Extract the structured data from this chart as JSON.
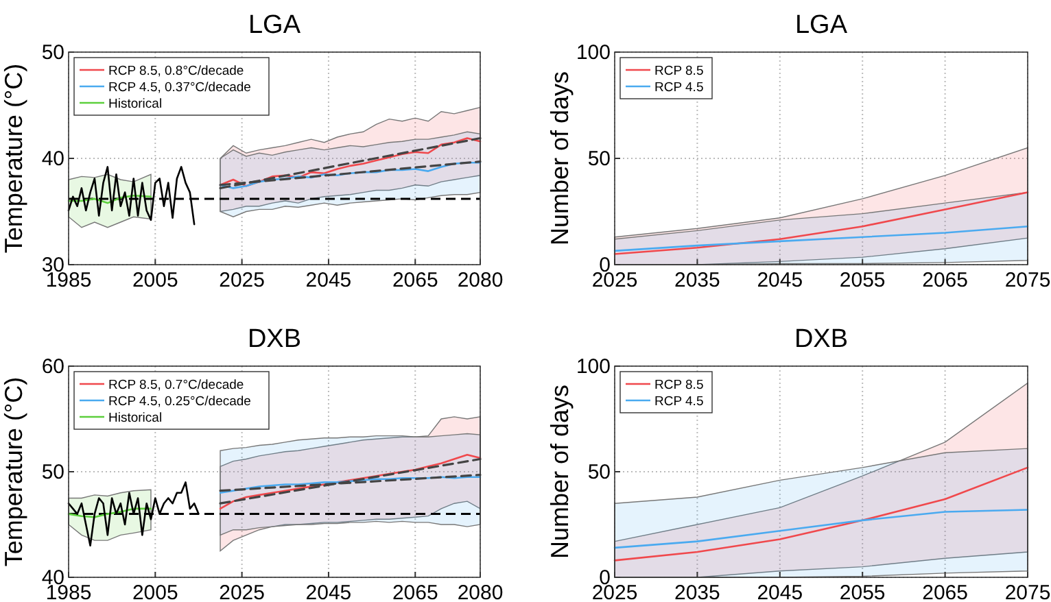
{
  "chart_data": [
    {
      "type": "line",
      "title": "LGA",
      "ylabel": "Temperature (°C)",
      "xlim": [
        1985,
        2080
      ],
      "xticks": [
        1985,
        2005,
        2025,
        2045,
        2065,
        2080
      ],
      "ylim": [
        30,
        50
      ],
      "yticks": [
        30,
        40,
        50
      ],
      "grid": true,
      "legend": "top left",
      "ref_lines": [
        {
          "axis": "y",
          "value": 36.2,
          "color": "#000000",
          "line_style": "dashed"
        }
      ],
      "series": [
        {
          "name": "RCP 8.5, 0.8°C/decade",
          "color": "#f0484c",
          "x": [
            2020,
            2023,
            2026,
            2029,
            2032,
            2035,
            2038,
            2041,
            2044,
            2047,
            2050,
            2053,
            2056,
            2059,
            2062,
            2065,
            2068,
            2071,
            2074,
            2077,
            2080
          ],
          "values": [
            37.5,
            38.0,
            37.4,
            37.8,
            38.3,
            38.4,
            38.2,
            38.7,
            38.6,
            39.0,
            39.3,
            39.5,
            39.8,
            40.1,
            40.4,
            40.6,
            40.5,
            41.3,
            41.5,
            41.9,
            41.6
          ],
          "upper": [
            40,
            41.2,
            40.5,
            40.8,
            41,
            41.2,
            41.5,
            41.8,
            41.5,
            42,
            42.3,
            42.5,
            43.2,
            43.7,
            43.5,
            43.8,
            43.5,
            44.4,
            44.2,
            44.5,
            44.8
          ],
          "lower": [
            35,
            35.2,
            35.5,
            35.5,
            35.8,
            36,
            35.8,
            36.2,
            36.4,
            36.5,
            36.6,
            36.8,
            37,
            37,
            37.2,
            37.5,
            37.4,
            37.8,
            38,
            38.2,
            38.4
          ]
        },
        {
          "name": "RCP 4.5, 0.37°C/decade",
          "color": "#4aaaf0",
          "x": [
            2020,
            2023,
            2026,
            2029,
            2032,
            2035,
            2038,
            2041,
            2044,
            2047,
            2050,
            2053,
            2056,
            2059,
            2062,
            2065,
            2068,
            2071,
            2074,
            2077,
            2080
          ],
          "values": [
            37.5,
            37.2,
            37.4,
            37.8,
            38,
            38.1,
            38.3,
            38.2,
            38.5,
            38.4,
            38.6,
            38.7,
            38.7,
            38.9,
            38.9,
            39,
            38.8,
            39.2,
            39.5,
            39.6,
            39.6
          ],
          "upper": [
            40,
            40.8,
            40.2,
            40.5,
            40.3,
            40.6,
            40.8,
            41,
            40.8,
            41,
            41.2,
            41.1,
            41.3,
            41.5,
            41.6,
            41.8,
            41.8,
            42,
            42.2,
            42.5,
            42.3
          ],
          "lower": [
            35,
            34.5,
            35,
            35.2,
            35.2,
            35.5,
            35.4,
            35.6,
            35.8,
            35.6,
            35.8,
            35.9,
            36,
            36.1,
            36.2,
            36.1,
            36.3,
            36.5,
            36.6,
            36.6,
            36.8
          ]
        },
        {
          "name": "Historical",
          "color": "#5ccf3c",
          "x": [
            1985,
            1988,
            1991,
            1994,
            1997,
            2000,
            2004
          ],
          "values": [
            36,
            36,
            36.2,
            35.8,
            36.3,
            36.5,
            36.4
          ],
          "lower": [
            34.5,
            33.5,
            34,
            33.5,
            34,
            34.5,
            34.3
          ],
          "upper": [
            38,
            38.3,
            38.2,
            38.5,
            38,
            37.8,
            38.5
          ]
        },
        {
          "color": "#000000",
          "x": [
            1985,
            1986,
            1987,
            1988,
            1989,
            1990,
            1991,
            1992,
            1993,
            1994,
            1995,
            1996,
            1997,
            1998,
            1999,
            2000,
            2001,
            2002,
            2003,
            2004,
            2005,
            2006,
            2007,
            2008,
            2009,
            2010,
            2011,
            2012,
            2013,
            2014
          ],
          "values": [
            35.1,
            36.4,
            35.5,
            37.2,
            35.1,
            36.8,
            38.1,
            34.6,
            37.7,
            39.2,
            35.1,
            38.5,
            35.5,
            36.8,
            34.6,
            38.1,
            34.6,
            37.7,
            35.1,
            34.2,
            37.7,
            38.1,
            35.5,
            37.7,
            34.4,
            38.1,
            39.2,
            37.7,
            36.8,
            33.8
          ]
        },
        {
          "color": "#444444",
          "line_style": "dashed",
          "x": [
            2020,
            2080
          ],
          "values": [
            37.2,
            41.9
          ]
        },
        {
          "color": "#444444",
          "line_style": "dashed",
          "x": [
            2020,
            2080
          ],
          "values": [
            37.5,
            39.7
          ]
        }
      ]
    },
    {
      "type": "line",
      "title": "LGA",
      "ylabel": "Number of days",
      "xlim": [
        2025,
        2075
      ],
      "xticks": [
        2025,
        2035,
        2045,
        2055,
        2065,
        2075
      ],
      "ylim": [
        0,
        100
      ],
      "yticks": [
        0,
        50,
        100
      ],
      "grid": true,
      "legend": "top left",
      "series": [
        {
          "name": "RCP 8.5",
          "color": "#f0484c",
          "x": [
            2025,
            2035,
            2045,
            2055,
            2065,
            2075
          ],
          "values": [
            5,
            8,
            12,
            18,
            26,
            34
          ],
          "upper": [
            13,
            17,
            22,
            31,
            42,
            55
          ],
          "lower": [
            0,
            0,
            1.5,
            3.5,
            7.5,
            12.5
          ]
        },
        {
          "name": "RCP 4.5",
          "color": "#4aaaf0",
          "x": [
            2025,
            2035,
            2045,
            2055,
            2065,
            2075
          ],
          "values": [
            6.5,
            9,
            11,
            13,
            15,
            18
          ],
          "upper": [
            12,
            16,
            21,
            24,
            29,
            34
          ],
          "lower": [
            0,
            0,
            0.5,
            0.5,
            1,
            2
          ]
        }
      ]
    },
    {
      "type": "line",
      "title": "DXB",
      "ylabel": "Temperature (°C)",
      "xlim": [
        1985,
        2080
      ],
      "xticks": [
        1985,
        2005,
        2025,
        2045,
        2065,
        2080
      ],
      "ylim": [
        40,
        60
      ],
      "yticks": [
        40,
        50,
        60
      ],
      "grid": true,
      "legend": "top left",
      "ref_lines": [
        {
          "axis": "y",
          "value": 46,
          "color": "#000000",
          "line_style": "dashed"
        }
      ],
      "series": [
        {
          "name": "RCP 8.5, 0.7°C/decade",
          "color": "#f0484c",
          "x": [
            2020,
            2023,
            2026,
            2029,
            2032,
            2035,
            2038,
            2041,
            2044,
            2047,
            2050,
            2053,
            2056,
            2059,
            2062,
            2065,
            2068,
            2071,
            2074,
            2077,
            2080
          ],
          "values": [
            46.5,
            47.2,
            47.6,
            47.8,
            48,
            48.2,
            48.4,
            48.6,
            48.8,
            49,
            49.2,
            49.4,
            49.6,
            49.8,
            50,
            50.2,
            50.5,
            50.8,
            51.2,
            51.6,
            51.3
          ],
          "upper": [
            50.5,
            51,
            51.2,
            51.5,
            51.7,
            51.9,
            52,
            52.2,
            52.4,
            52.6,
            52.8,
            53,
            53.1,
            53.2,
            53.3,
            53.3,
            53.4,
            55,
            55.2,
            55,
            55.2
          ],
          "lower": [
            42.5,
            43.5,
            44,
            44.5,
            44.8,
            45,
            45,
            45.1,
            45.2,
            45.2,
            45.3,
            45.4,
            45.5,
            45.5,
            45.6,
            45.7,
            45.8,
            46.5,
            47,
            47.2,
            46.5
          ]
        },
        {
          "name": "RCP 4.5, 0.25°C/decade",
          "color": "#4aaaf0",
          "x": [
            2020,
            2023,
            2026,
            2029,
            2032,
            2035,
            2038,
            2041,
            2044,
            2047,
            2050,
            2053,
            2056,
            2059,
            2062,
            2065,
            2068,
            2071,
            2074,
            2077,
            2080
          ],
          "values": [
            48,
            48.2,
            48.4,
            48.6,
            48.7,
            48.8,
            48.8,
            48.9,
            49,
            49,
            49.1,
            49.2,
            49.3,
            49.3,
            49.4,
            49.4,
            49.4,
            49.5,
            49.4,
            49.5,
            49.5
          ],
          "upper": [
            52,
            52.2,
            52.3,
            52.5,
            52.6,
            52.8,
            53,
            53.1,
            53.2,
            53.2,
            53.3,
            53.3,
            53.4,
            53.4,
            53.4,
            53.3,
            53.3,
            53.4,
            53.5,
            53.6,
            53.5
          ],
          "lower": [
            44,
            44.5,
            44.5,
            44.7,
            44.8,
            44.9,
            45,
            45,
            45.1,
            45.1,
            45.2,
            45.2,
            45.3,
            45.2,
            45.3,
            45.2,
            45.2,
            45,
            45,
            44.8,
            45
          ]
        },
        {
          "name": "Historical",
          "color": "#5ccf3c",
          "x": [
            1985,
            1988,
            1991,
            1994,
            1997,
            2000,
            2004
          ],
          "values": [
            46,
            45.8,
            45.7,
            46,
            46.2,
            46.5,
            46.5
          ],
          "lower": [
            45,
            44,
            43.5,
            43.5,
            44,
            44.2,
            44.5
          ],
          "upper": [
            47.5,
            47.5,
            47.8,
            47.7,
            48,
            48.2,
            48.3
          ]
        },
        {
          "color": "#000000",
          "x": [
            1985,
            1986,
            1987,
            1988,
            1989,
            1990,
            1991,
            1992,
            1993,
            1994,
            1995,
            1996,
            1997,
            1998,
            1999,
            2000,
            2001,
            2002,
            2003,
            2004,
            2005,
            2006,
            2007,
            2008,
            2009,
            2010,
            2011,
            2012,
            2013,
            2014,
            2015
          ],
          "values": [
            47,
            46.5,
            46,
            47,
            45,
            43,
            46,
            47.5,
            47,
            44,
            47.5,
            46,
            47,
            45,
            48,
            46,
            47.5,
            44,
            47,
            45.5,
            47.5,
            46,
            47,
            47.5,
            47,
            48,
            48,
            49,
            46.5,
            47,
            46
          ]
        },
        {
          "color": "#444444",
          "line_style": "dashed",
          "x": [
            2020,
            2080
          ],
          "values": [
            47,
            51.2
          ]
        },
        {
          "color": "#444444",
          "line_style": "dashed",
          "x": [
            2020,
            2080
          ],
          "values": [
            48.2,
            49.7
          ]
        }
      ]
    },
    {
      "type": "line",
      "title": "DXB",
      "ylabel": "Number of days",
      "xlim": [
        2025,
        2075
      ],
      "xticks": [
        2025,
        2035,
        2045,
        2055,
        2065,
        2075
      ],
      "ylim": [
        0,
        100
      ],
      "yticks": [
        0,
        50,
        100
      ],
      "grid": true,
      "legend": "top left",
      "series": [
        {
          "name": "RCP 8.5",
          "color": "#f0484c",
          "x": [
            2025,
            2035,
            2045,
            2055,
            2065,
            2075
          ],
          "values": [
            8,
            12,
            18,
            27,
            37,
            52
          ],
          "upper": [
            17,
            25,
            33,
            48,
            64,
            92
          ],
          "lower": [
            0,
            0,
            3,
            5,
            9,
            12
          ]
        },
        {
          "name": "RCP 4.5",
          "color": "#4aaaf0",
          "x": [
            2025,
            2035,
            2045,
            2055,
            2065,
            2075
          ],
          "values": [
            14,
            17,
            22,
            27,
            31,
            32
          ],
          "upper": [
            35,
            38,
            46,
            52,
            59,
            61
          ],
          "lower": [
            0,
            0,
            0,
            0.5,
            2,
            3
          ]
        }
      ]
    }
  ]
}
